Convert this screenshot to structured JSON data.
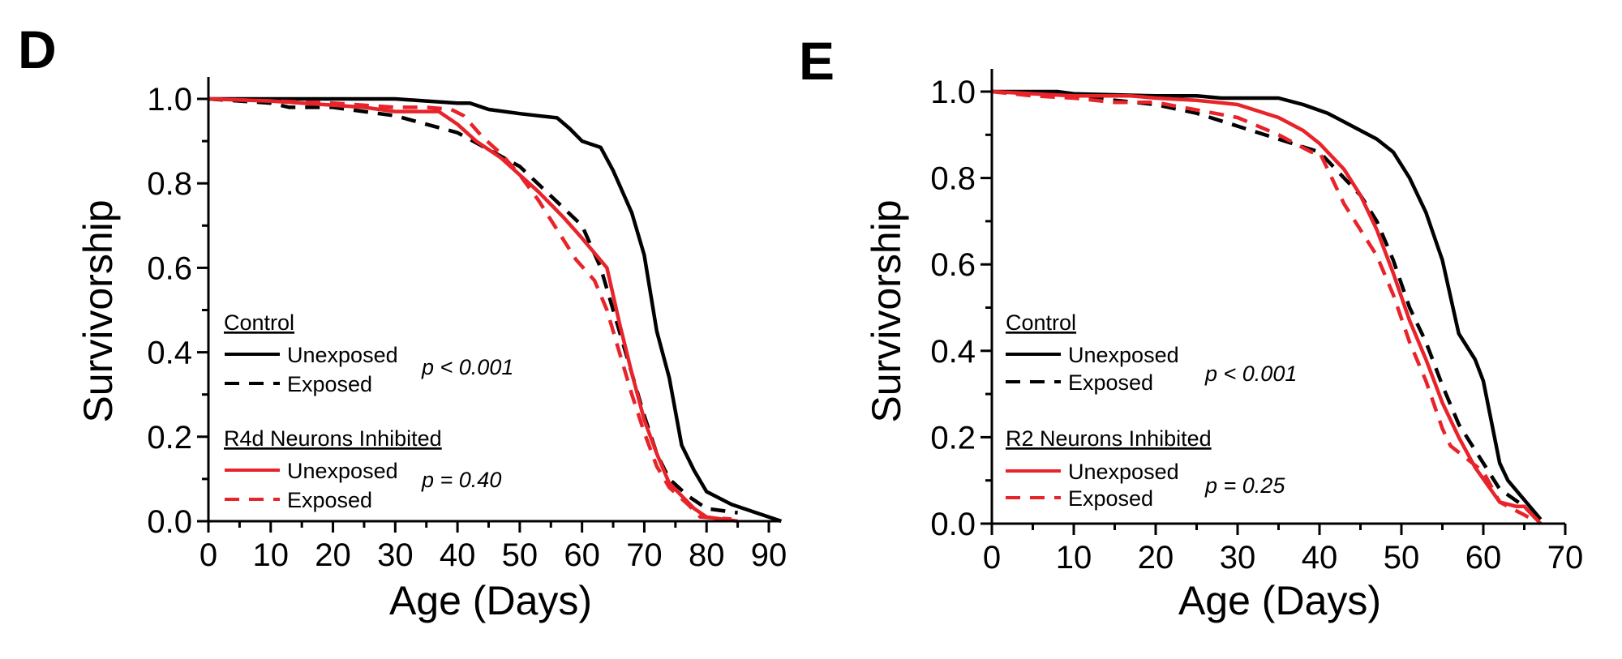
{
  "figure": {
    "panels": [
      "D",
      "E"
    ]
  },
  "chart_data": [
    {
      "type": "line",
      "panel_label": "D",
      "title": "",
      "xlabel": "Age (Days)",
      "ylabel": "Survivorship",
      "xlim": [
        0,
        92
      ],
      "ylim": [
        0,
        1.0
      ],
      "xticks": [
        0,
        10,
        20,
        30,
        40,
        50,
        60,
        70,
        80,
        90
      ],
      "xtick_labels": [
        "0",
        "10",
        "20",
        "30",
        "40",
        "50",
        "60",
        "70",
        "80",
        "90"
      ],
      "yticks": [
        0.0,
        0.2,
        0.4,
        0.6,
        0.8,
        1.0
      ],
      "ytick_labels": [
        "0.0",
        "0.2",
        "0.4",
        "0.6",
        "0.8",
        "1.0"
      ],
      "grid": false,
      "legend_placement": "bottom-left",
      "legend_groups": [
        {
          "title": "Control",
          "pvalue": "p < 0.001",
          "entries": [
            "Unexposed",
            "Exposed"
          ]
        },
        {
          "title": "R4d Neurons Inhibited",
          "pvalue": "p = 0.40",
          "entries": [
            "Unexposed",
            "Exposed"
          ]
        }
      ],
      "series": [
        {
          "name": "Control Unexposed",
          "color": "#000000",
          "dashed": false,
          "x": [
            0,
            30,
            35,
            40,
            42,
            45,
            50,
            53,
            56,
            58,
            60,
            63,
            65,
            68,
            70,
            72,
            74,
            76,
            78,
            80,
            84,
            88,
            92
          ],
          "y": [
            1.0,
            1.0,
            0.995,
            0.99,
            0.99,
            0.975,
            0.965,
            0.96,
            0.955,
            0.93,
            0.9,
            0.885,
            0.83,
            0.73,
            0.63,
            0.45,
            0.34,
            0.18,
            0.12,
            0.07,
            0.04,
            0.02,
            0.0
          ]
        },
        {
          "name": "Control Exposed",
          "color": "#000000",
          "dashed": true,
          "x": [
            0,
            10,
            13,
            20,
            25,
            30,
            35,
            40,
            45,
            50,
            55,
            60,
            63,
            66,
            68,
            70,
            72,
            74,
            77,
            80,
            85
          ],
          "y": [
            1.0,
            0.99,
            0.98,
            0.98,
            0.97,
            0.96,
            0.94,
            0.92,
            0.88,
            0.84,
            0.77,
            0.7,
            0.6,
            0.45,
            0.35,
            0.25,
            0.16,
            0.1,
            0.06,
            0.03,
            0.02
          ]
        },
        {
          "name": "R4d Neurons Inhibited Unexposed",
          "color": "#e8232a",
          "dashed": false,
          "x": [
            0,
            10,
            20,
            25,
            30,
            35,
            37,
            40,
            43,
            47,
            50,
            53,
            57,
            60,
            64,
            66,
            68,
            70,
            72,
            74,
            76,
            78,
            80,
            85
          ],
          "y": [
            1.0,
            0.995,
            0.985,
            0.98,
            0.97,
            0.97,
            0.97,
            0.94,
            0.9,
            0.86,
            0.82,
            0.78,
            0.72,
            0.67,
            0.6,
            0.47,
            0.35,
            0.24,
            0.16,
            0.09,
            0.06,
            0.03,
            0.01,
            0.0
          ]
        },
        {
          "name": "R4d Neurons Inhibited Exposed",
          "color": "#e8232a",
          "dashed": true,
          "x": [
            0,
            20,
            30,
            35,
            39,
            41,
            44,
            47,
            50,
            53,
            56,
            59,
            62,
            64,
            66,
            68,
            70,
            72,
            74,
            77,
            79,
            84
          ],
          "y": [
            1.0,
            0.99,
            0.98,
            0.98,
            0.975,
            0.96,
            0.91,
            0.87,
            0.82,
            0.76,
            0.69,
            0.62,
            0.57,
            0.5,
            0.4,
            0.3,
            0.21,
            0.13,
            0.08,
            0.04,
            0.01,
            0.005
          ]
        }
      ],
      "annotations": [
        "p < 0.001",
        "p = 0.40"
      ]
    },
    {
      "type": "line",
      "panel_label": "E",
      "title": "",
      "xlabel": "Age (Days)",
      "ylabel": "Survivorship",
      "xlim": [
        0,
        70
      ],
      "ylim": [
        0,
        1.0
      ],
      "xticks": [
        0,
        10,
        20,
        30,
        40,
        50,
        60,
        70
      ],
      "xtick_labels": [
        "0",
        "10",
        "20",
        "30",
        "40",
        "50",
        "60",
        "70"
      ],
      "yticks": [
        0.0,
        0.2,
        0.4,
        0.6,
        0.8,
        1.0
      ],
      "ytick_labels": [
        "0.0",
        "0.2",
        "0.4",
        "0.6",
        "0.8",
        "1.0"
      ],
      "grid": false,
      "legend_placement": "bottom-left",
      "legend_groups": [
        {
          "title": "Control",
          "pvalue": "p < 0.001",
          "entries": [
            "Unexposed",
            "Exposed"
          ]
        },
        {
          "title": "R2 Neurons Inhibited",
          "pvalue": "p = 0.25",
          "entries": [
            "Unexposed",
            "Exposed"
          ]
        }
      ],
      "series": [
        {
          "name": "Control Unexposed",
          "color": "#000000",
          "dashed": false,
          "x": [
            0,
            8,
            10,
            20,
            25,
            28,
            35,
            38,
            41,
            44,
            47,
            49,
            51,
            53,
            55,
            57,
            59,
            60,
            62,
            63,
            67
          ],
          "y": [
            1.0,
            1.0,
            0.995,
            0.99,
            0.99,
            0.985,
            0.985,
            0.97,
            0.95,
            0.92,
            0.89,
            0.86,
            0.8,
            0.72,
            0.61,
            0.44,
            0.38,
            0.33,
            0.14,
            0.1,
            0.01
          ]
        },
        {
          "name": "Control Exposed",
          "color": "#000000",
          "dashed": true,
          "x": [
            0,
            10,
            20,
            25,
            30,
            35,
            40,
            43,
            45,
            47,
            49,
            51,
            53,
            55,
            57,
            59,
            62,
            65,
            67
          ],
          "y": [
            1.0,
            0.99,
            0.97,
            0.95,
            0.92,
            0.89,
            0.86,
            0.8,
            0.76,
            0.7,
            0.61,
            0.5,
            0.42,
            0.32,
            0.23,
            0.17,
            0.08,
            0.04,
            0.0
          ]
        },
        {
          "name": "R2 Neurons Inhibited Unexposed",
          "color": "#e8232a",
          "dashed": false,
          "x": [
            0,
            10,
            17,
            20,
            25,
            30,
            35,
            38,
            40,
            43,
            45,
            47,
            49,
            51,
            53,
            55,
            57,
            59,
            62,
            64,
            65,
            67
          ],
          "y": [
            1.0,
            0.99,
            0.99,
            0.985,
            0.98,
            0.97,
            0.94,
            0.91,
            0.88,
            0.82,
            0.76,
            0.68,
            0.58,
            0.47,
            0.38,
            0.28,
            0.2,
            0.13,
            0.05,
            0.04,
            0.04,
            0.0
          ]
        },
        {
          "name": "R2 Neurons Inhibited Exposed",
          "color": "#e8232a",
          "dashed": true,
          "x": [
            0,
            5,
            10,
            15,
            20,
            30,
            35,
            39,
            40,
            41,
            43,
            45,
            47,
            49,
            51,
            53,
            55,
            56,
            58,
            60,
            62,
            65,
            67
          ],
          "y": [
            1.0,
            0.99,
            0.985,
            0.975,
            0.975,
            0.94,
            0.9,
            0.86,
            0.86,
            0.82,
            0.74,
            0.68,
            0.62,
            0.53,
            0.42,
            0.33,
            0.22,
            0.18,
            0.15,
            0.12,
            0.05,
            0.02,
            0.0
          ]
        }
      ],
      "annotations": [
        "p < 0.001",
        "p = 0.25"
      ]
    }
  ]
}
